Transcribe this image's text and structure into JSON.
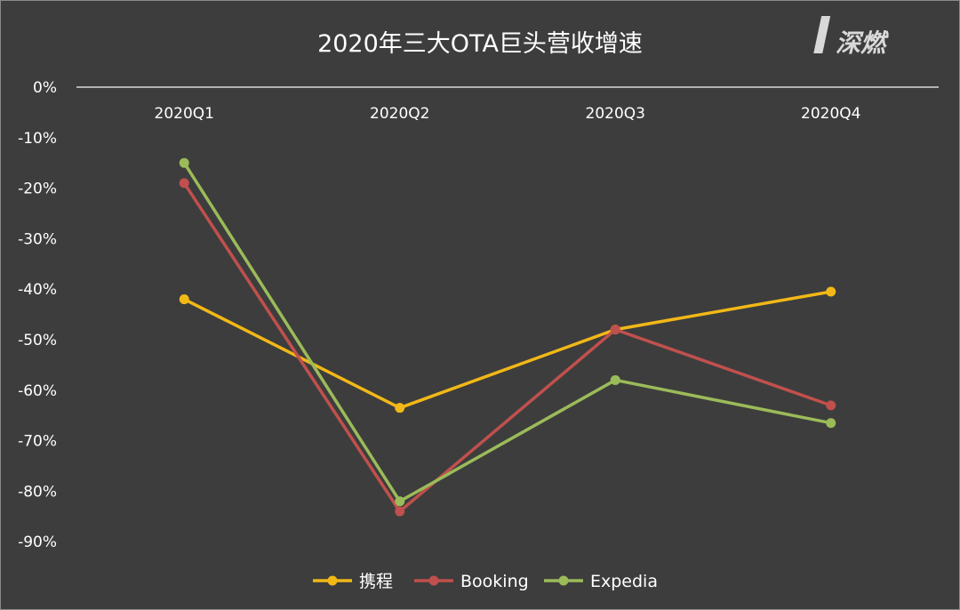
{
  "logo": {
    "text": "深燃"
  },
  "chart_data": {
    "type": "line",
    "title": "2020年三大OTA巨头营收增速",
    "categories": [
      "2020Q1",
      "2020Q2",
      "2020Q3",
      "2020Q4"
    ],
    "y_ticks": [
      "0%",
      "-10%",
      "-20%",
      "-30%",
      "-40%",
      "-50%",
      "-60%",
      "-70%",
      "-80%",
      "-90%"
    ],
    "ylim": [
      -100,
      0
    ],
    "grid": false,
    "legend_position": "bottom",
    "series": [
      {
        "name": "携程",
        "color": "#f2b817",
        "values": [
          -42,
          -63.5,
          -48,
          -40.5
        ]
      },
      {
        "name": "Booking",
        "color": "#c0504d",
        "values": [
          -19,
          -84,
          -48,
          -63
        ]
      },
      {
        "name": "Expedia",
        "color": "#9bbb59",
        "values": [
          -15,
          -82,
          -58,
          -66.5
        ]
      }
    ]
  }
}
